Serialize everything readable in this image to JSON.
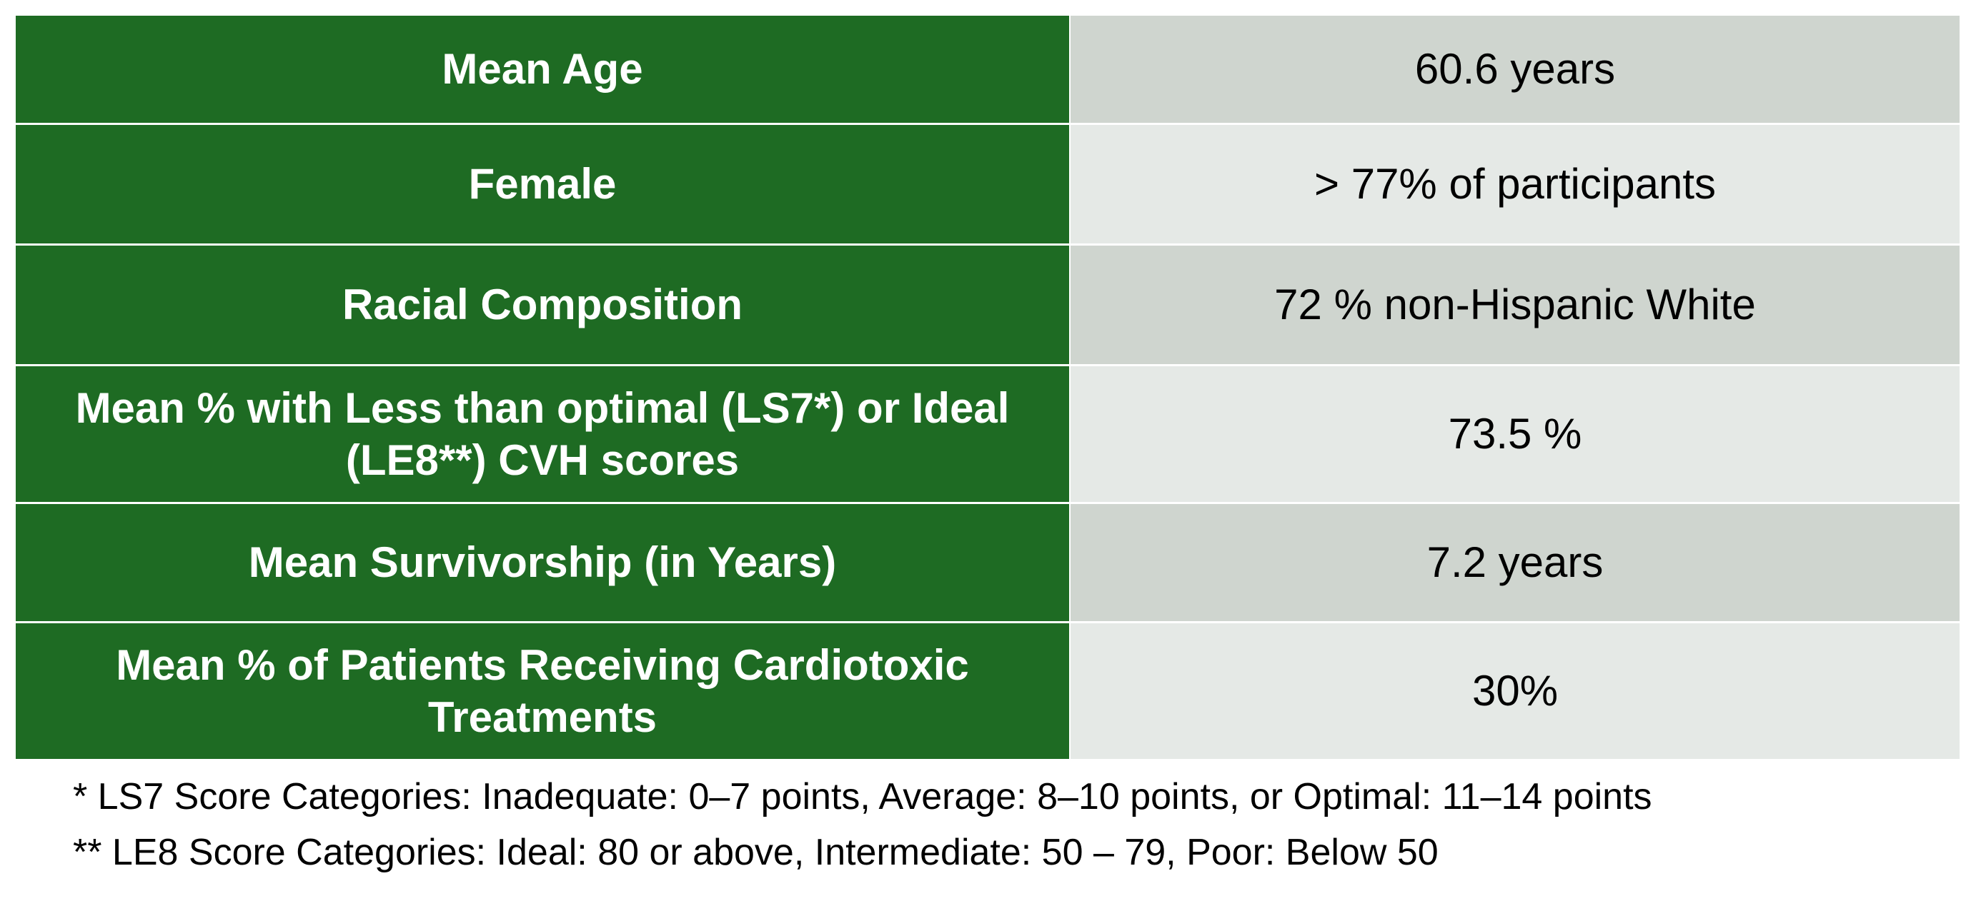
{
  "table": {
    "rows": [
      {
        "label": "Mean Age",
        "value": "60.6 years"
      },
      {
        "label": "Female",
        "value": "> 77% of participants"
      },
      {
        "label": "Racial Composition",
        "value": "72 % non-Hispanic White"
      },
      {
        "label": "Mean % with Less than optimal (LS7*)  or Ideal (LE8**) CVH scores",
        "value": "73.5 %"
      },
      {
        "label": "Mean Survivorship (in Years)",
        "value": "7.2 years"
      },
      {
        "label": "Mean % of Patients Receiving Cardiotoxic Treatments",
        "value": "30%"
      }
    ]
  },
  "footnotes": {
    "ls7": "* LS7 Score Categories: Inadequate: 0–7 points, Average: 8–10 points, or Optimal: 11–14 points",
    "le8": "** LE8 Score Categories: Ideal: 80 or above, Intermediate: 50 – 79, Poor: Below 50"
  },
  "colors": {
    "label_background": "#1e6b23",
    "value_background_dark": "#cfd5cf",
    "value_background_light": "#e5e9e6"
  }
}
